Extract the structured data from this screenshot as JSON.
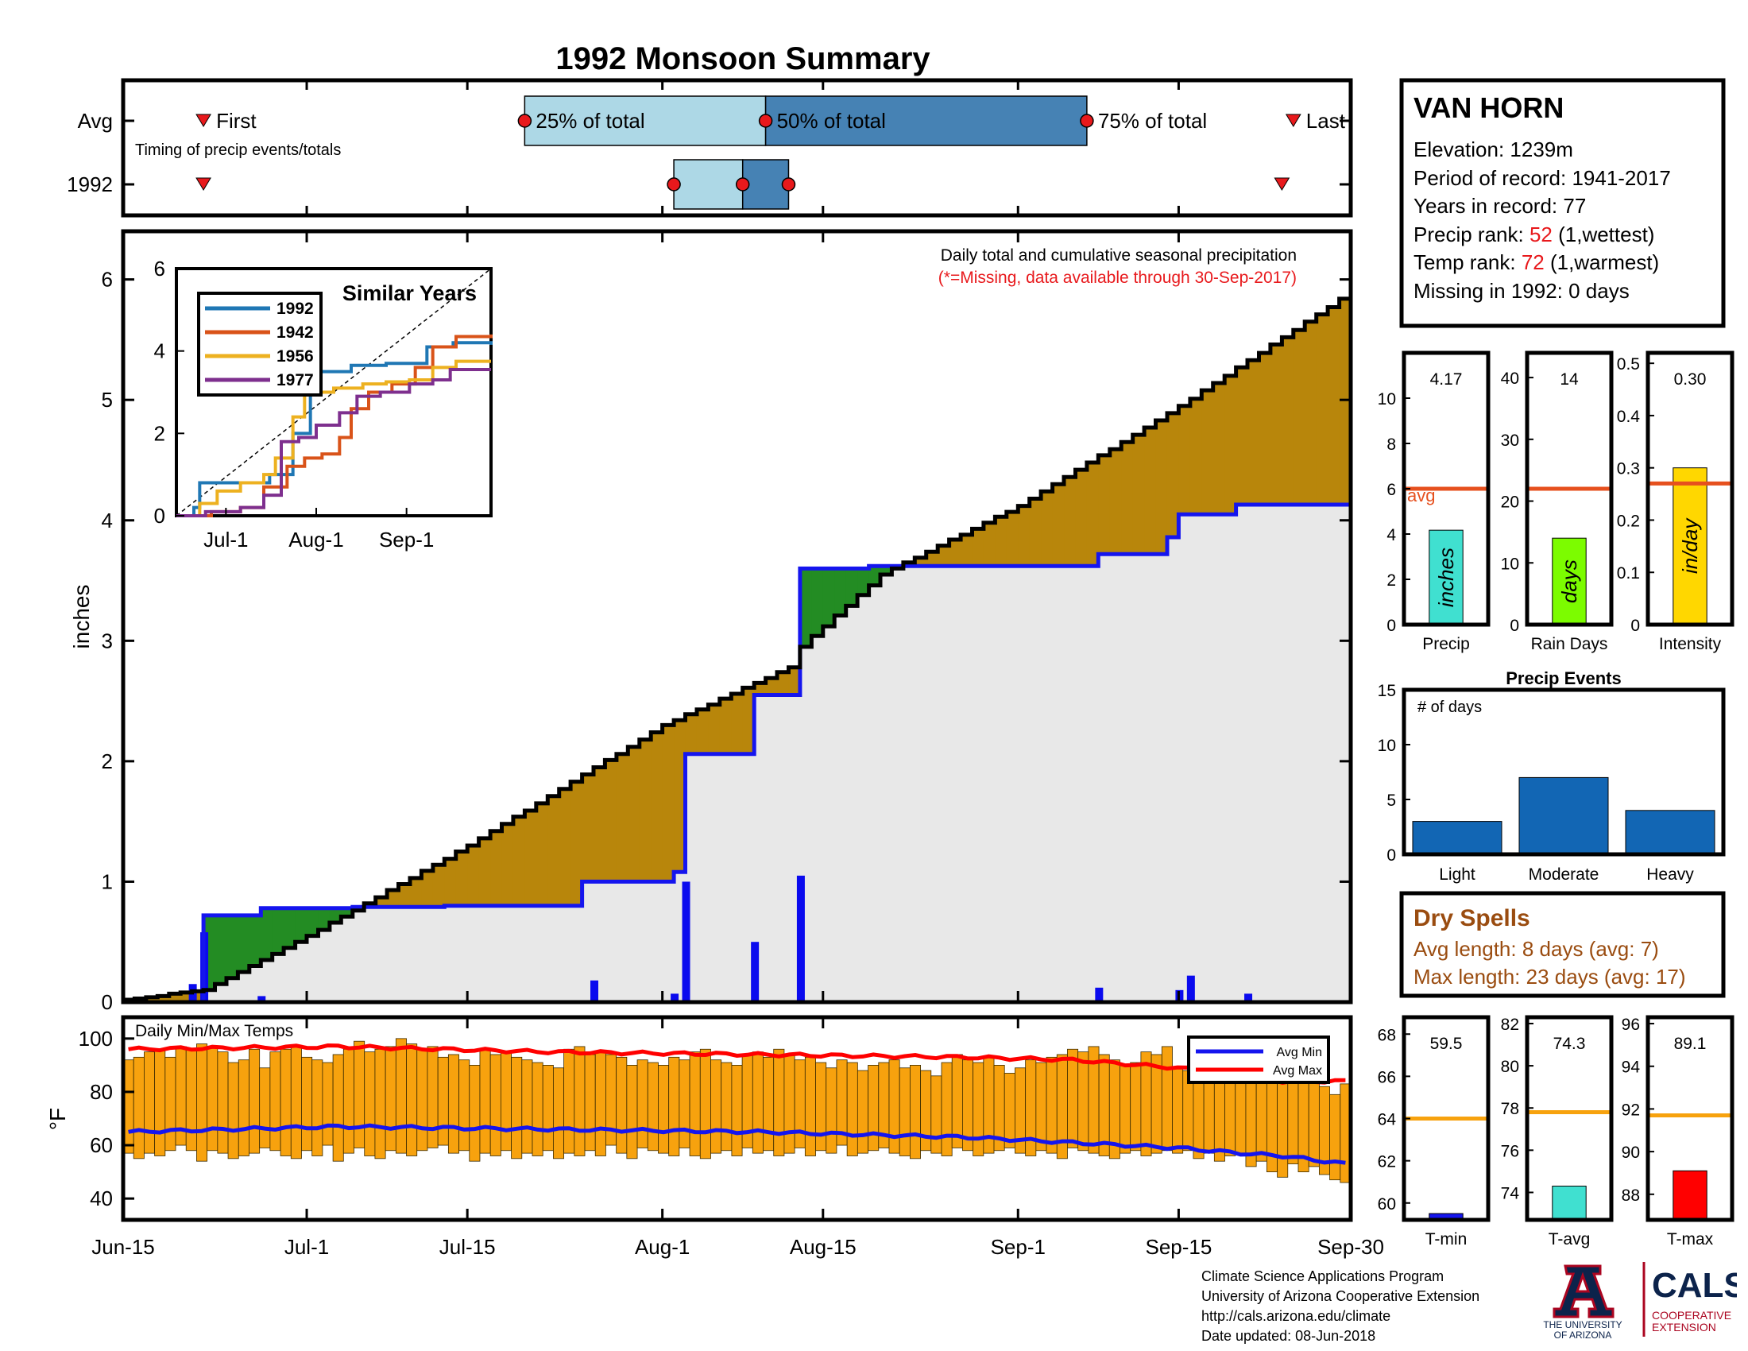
{
  "title": "1992 Monsoon Summary",
  "timing": {
    "row_labels": [
      "Avg",
      "1992"
    ],
    "caption": "Timing of precip events/totals",
    "first_label": "First",
    "last_label": "Last",
    "pct25_label": "25% of total",
    "pct50_label": "50% of total",
    "pct75_label": "75% of total"
  },
  "station": {
    "name": "VAN HORN",
    "elevation_label": "Elevation: ",
    "elevation": "1239m",
    "period_label": "Period of record: ",
    "period": "1941-2017",
    "years_label": "Years in record: ",
    "years": "77",
    "precip_rank_label": "Precip rank: ",
    "precip_rank": "52",
    "precip_rank_note": " (1,wettest)",
    "temp_rank_label": "Temp rank: ",
    "temp_rank": "72",
    "temp_rank_note": " (1,warmest)",
    "missing_label": "Missing in 1992: ",
    "missing": "0 days"
  },
  "main_chart": {
    "subtitle": "Daily total and cumulative seasonal precipitation",
    "missing_note": "(*=Missing, data available through 30-Sep-2017)",
    "ylabel": "inches"
  },
  "inset": {
    "title": "Similar Years"
  },
  "temp_chart": {
    "title": "Daily Min/Max Temps",
    "ylabel": "°F",
    "legend_min": "Avg Min",
    "legend_max": "Avg Max"
  },
  "dry_spells": {
    "title": "Dry Spells",
    "avg_line": "Avg length: 8 days (avg: 7)",
    "max_line": "Max length: 23 days (avg: 17)"
  },
  "footer": {
    "line1": "Climate Science Applications Program",
    "line2": "University of Arizona Cooperative Extension",
    "line3": "http://cals.arizona.edu/climate",
    "line4": " Date updated: 08-Jun-2018"
  },
  "logos": {
    "ua_line1": "THE UNIVERSITY",
    "ua_line2": "OF ARIZONA",
    "cals_name": "CALS",
    "cals_line1": "COOPERATIVE",
    "cals_line2": "EXTENSION"
  },
  "colors": {
    "title_red": "#e8191c",
    "obs_black": "#000000",
    "avg_blue": "#1515ee",
    "above_green": "#238c23",
    "below_brown": "#b8860b",
    "bar_blue": "#0a0aee",
    "temp_orange": "#f7a20e",
    "avg_orange": "#e6501e",
    "events_blue": "#1266b4",
    "dry_brown": "#9a4c10",
    "light_blue": "#add8e6",
    "steel_blue": "#4682b4",
    "precip_teal": "#40e0d0",
    "raindays_green": "#7cfc00",
    "intensity_gold": "#ffd700",
    "tavg_teal": "#40e0d0",
    "tmax_red": "#ff0000",
    "tmin_blue": "#1515ee"
  },
  "chart_data": [
    {
      "id": "timing",
      "type": "timeline",
      "x_dates": [
        "Jun-15",
        "Jul-1",
        "Jul-15",
        "Aug-1",
        "Aug-15",
        "Sep-1",
        "Sep-15",
        "Sep-30"
      ],
      "avg": {
        "first": "Jun-22",
        "pct25": "Jul-20",
        "pct50": "Aug-10",
        "pct75": "Sep-7",
        "last": "Sep-25"
      },
      "year_1992": {
        "first": "Jun-22",
        "pct25": "Aug-2",
        "pct50": "Aug-8",
        "pct75": "Aug-12",
        "last": "Sep-24"
      }
    },
    {
      "id": "cumulative_precip",
      "type": "area",
      "x_label_dates": [
        "Jun-15",
        "Jul-1",
        "Jul-15",
        "Aug-1",
        "Aug-15",
        "Sep-1",
        "Sep-15",
        "Sep-30"
      ],
      "yticks": [
        0,
        1,
        2,
        3,
        4,
        5,
        6
      ],
      "ylim": [
        0,
        6.4
      ],
      "avg_cumulative_steps": [
        {
          "date": "Jun-15",
          "value": 0.0
        },
        {
          "date": "Jun-22",
          "value": 0.72
        },
        {
          "date": "Jun-27",
          "value": 0.78
        },
        {
          "date": "Jul-5",
          "value": 0.79
        },
        {
          "date": "Jul-13",
          "value": 0.8
        },
        {
          "date": "Jul-25",
          "value": 1.0
        },
        {
          "date": "Aug-2",
          "value": 1.08
        },
        {
          "date": "Aug-3",
          "value": 2.06
        },
        {
          "date": "Aug-9",
          "value": 2.55
        },
        {
          "date": "Aug-13",
          "value": 3.6
        },
        {
          "date": "Aug-19",
          "value": 3.62
        },
        {
          "date": "Sep-8",
          "value": 3.72
        },
        {
          "date": "Sep-14",
          "value": 3.86
        },
        {
          "date": "Sep-15",
          "value": 4.05
        },
        {
          "date": "Sep-20",
          "value": 4.13
        },
        {
          "date": "Sep-30",
          "value": 4.13
        }
      ],
      "observed_cumulative_keypoints": [
        {
          "date": "Jun-15",
          "value": 0.02
        },
        {
          "date": "Jun-22",
          "value": 0.1
        },
        {
          "date": "Jul-1",
          "value": 0.55
        },
        {
          "date": "Jul-15",
          "value": 1.3
        },
        {
          "date": "Aug-1",
          "value": 2.3
        },
        {
          "date": "Aug-12",
          "value": 2.78
        },
        {
          "date": "Aug-13",
          "value": 2.95
        },
        {
          "date": "Aug-20",
          "value": 3.55
        },
        {
          "date": "Sep-1",
          "value": 4.12
        },
        {
          "date": "Sep-15",
          "value": 4.95
        },
        {
          "date": "Sep-30",
          "value": 5.9
        }
      ],
      "daily_precip": [
        {
          "date": "Jun-21",
          "value": 0.15
        },
        {
          "date": "Jun-22",
          "value": 0.58
        },
        {
          "date": "Jun-27",
          "value": 0.05
        },
        {
          "date": "Jul-26",
          "value": 0.18
        },
        {
          "date": "Aug-2",
          "value": 0.07
        },
        {
          "date": "Aug-3",
          "value": 1.0
        },
        {
          "date": "Aug-9",
          "value": 0.5
        },
        {
          "date": "Aug-13",
          "value": 1.05
        },
        {
          "date": "Sep-8",
          "value": 0.12
        },
        {
          "date": "Sep-15",
          "value": 0.1
        },
        {
          "date": "Sep-16",
          "value": 0.22
        },
        {
          "date": "Sep-21",
          "value": 0.07
        }
      ]
    },
    {
      "id": "similar_years",
      "type": "line",
      "x_tick_labels": [
        "Jul-1",
        "Aug-1",
        "Sep-1"
      ],
      "yticks": [
        0,
        2,
        4,
        6
      ],
      "ylim": [
        0,
        6
      ],
      "series": [
        {
          "name": "1992",
          "color": "#1f77b4",
          "points": [
            [
              0,
              0
            ],
            [
              6,
              0.2
            ],
            [
              8,
              0.8
            ],
            [
              20,
              0.8
            ],
            [
              25,
              0.8
            ],
            [
              32,
              1.0
            ],
            [
              40,
              2.0
            ],
            [
              46,
              3.5
            ],
            [
              60,
              3.65
            ],
            [
              72,
              3.7
            ],
            [
              86,
              4.1
            ],
            [
              95,
              4.2
            ],
            [
              108,
              4.15
            ]
          ]
        },
        {
          "name": "1942",
          "color": "#d95319",
          "points": [
            [
              0,
              0
            ],
            [
              12,
              0.1
            ],
            [
              22,
              0.2
            ],
            [
              30,
              0.7
            ],
            [
              38,
              1.2
            ],
            [
              44,
              1.4
            ],
            [
              50,
              1.5
            ],
            [
              56,
              1.9
            ],
            [
              60,
              2.6
            ],
            [
              66,
              3.0
            ],
            [
              74,
              3.2
            ],
            [
              82,
              3.6
            ],
            [
              88,
              4.1
            ],
            [
              96,
              4.35
            ],
            [
              108,
              4.4
            ]
          ]
        },
        {
          "name": "1956",
          "color": "#edb120",
          "points": [
            [
              0,
              0
            ],
            [
              8,
              0.3
            ],
            [
              14,
              0.6
            ],
            [
              22,
              0.8
            ],
            [
              30,
              1.0
            ],
            [
              34,
              1.4
            ],
            [
              40,
              2.4
            ],
            [
              44,
              3.0
            ],
            [
              54,
              3.1
            ],
            [
              64,
              3.2
            ],
            [
              72,
              3.25
            ],
            [
              80,
              3.3
            ],
            [
              88,
              3.6
            ],
            [
              96,
              3.75
            ],
            [
              108,
              3.75
            ]
          ]
        },
        {
          "name": "1977",
          "color": "#7e2f8e",
          "points": [
            [
              0,
              0
            ],
            [
              10,
              0.1
            ],
            [
              22,
              0.2
            ],
            [
              30,
              0.5
            ],
            [
              36,
              1.8
            ],
            [
              42,
              1.9
            ],
            [
              48,
              2.2
            ],
            [
              56,
              2.5
            ],
            [
              62,
              2.9
            ],
            [
              70,
              3.0
            ],
            [
              80,
              3.2
            ],
            [
              88,
              3.3
            ],
            [
              94,
              3.55
            ],
            [
              108,
              3.55
            ]
          ]
        }
      ],
      "reference_line": {
        "from": [
          0,
          0
        ],
        "to": [
          108,
          6.0
        ],
        "style": "dashed"
      }
    },
    {
      "id": "seasonal_bars",
      "type": "bar",
      "panels": [
        {
          "label": "Precip",
          "unit": "inches",
          "value": 4.17,
          "value_text": "4.17",
          "avg": 6.0,
          "avg_label": "avg",
          "ylim": [
            0,
            12
          ],
          "yticks": [
            0,
            2,
            4,
            6,
            8,
            10
          ],
          "color": "#40e0d0"
        },
        {
          "label": "Rain Days",
          "unit": "days",
          "value": 14,
          "value_text": "14",
          "avg": 22,
          "ylim": [
            0,
            44
          ],
          "yticks": [
            0,
            10,
            20,
            30,
            40
          ],
          "color": "#7cfc00"
        },
        {
          "label": "Intensity",
          "unit": "in/day",
          "value": 0.3,
          "value_text": "0.30",
          "avg": 0.27,
          "ylim": [
            0,
            0.52
          ],
          "yticks": [
            0,
            0.1,
            0.2,
            0.3,
            0.4,
            0.5
          ],
          "color": "#ffd700"
        }
      ]
    },
    {
      "id": "precip_events",
      "type": "bar",
      "title": "Precip Events",
      "ylabel": "# of days",
      "categories": [
        "Light",
        "Moderate",
        "Heavy"
      ],
      "values": [
        3,
        7,
        4
      ],
      "ylim": [
        0,
        15
      ],
      "yticks": [
        0,
        5,
        10,
        15
      ]
    },
    {
      "id": "daily_temps",
      "type": "bar",
      "yticks": [
        40,
        60,
        80,
        100
      ],
      "ylim": [
        32,
        108
      ],
      "avg_max_keypoints": [
        [
          0,
          96
        ],
        [
          20,
          97
        ],
        [
          40,
          95
        ],
        [
          60,
          94
        ],
        [
          80,
          93
        ],
        [
          90,
          92
        ],
        [
          100,
          89
        ],
        [
          107,
          86
        ],
        [
          110,
          84
        ],
        [
          116,
          84
        ]
      ],
      "avg_min_keypoints": [
        [
          0,
          65
        ],
        [
          20,
          67
        ],
        [
          40,
          66
        ],
        [
          60,
          65
        ],
        [
          80,
          63
        ],
        [
          90,
          61
        ],
        [
          100,
          59
        ],
        [
          106,
          57
        ],
        [
          110,
          56
        ],
        [
          116,
          53
        ]
      ],
      "daily_max": [
        92,
        93,
        95,
        96,
        93,
        97,
        96,
        98,
        97,
        95,
        91,
        92,
        96,
        89,
        95,
        96,
        97,
        93,
        92,
        91,
        94,
        96,
        99,
        95,
        96,
        97,
        100,
        98,
        96,
        97,
        93,
        94,
        92,
        90,
        96,
        94,
        95,
        93,
        92,
        91,
        90,
        89,
        96,
        97,
        94,
        95,
        94,
        93,
        90,
        92,
        91,
        90,
        93,
        92,
        95,
        96,
        92,
        91,
        90,
        94,
        95,
        93,
        96,
        94,
        92,
        93,
        91,
        89,
        92,
        91,
        88,
        90,
        91,
        92,
        89,
        90,
        88,
        86,
        91,
        94,
        92,
        91,
        93,
        90,
        87,
        89,
        92,
        91,
        93,
        94,
        96,
        95,
        97,
        94,
        92,
        90,
        91,
        95,
        94,
        97,
        89,
        88,
        90,
        87,
        93,
        96,
        92,
        91,
        89,
        85,
        90,
        87,
        84,
        85,
        82,
        79,
        83
      ],
      "daily_min": [
        57,
        55,
        57,
        56,
        58,
        60,
        58,
        54,
        58,
        57,
        55,
        56,
        57,
        59,
        58,
        56,
        55,
        58,
        56,
        60,
        54,
        57,
        59,
        56,
        55,
        58,
        57,
        56,
        58,
        59,
        60,
        57,
        58,
        54,
        57,
        56,
        58,
        55,
        57,
        56,
        58,
        55,
        57,
        56,
        58,
        56,
        60,
        57,
        55,
        59,
        58,
        57,
        56,
        59,
        56,
        55,
        57,
        58,
        56,
        59,
        57,
        58,
        56,
        57,
        59,
        56,
        58,
        57,
        60,
        56,
        57,
        58,
        59,
        57,
        56,
        55,
        58,
        57,
        56,
        59,
        58,
        56,
        57,
        58,
        59,
        57,
        56,
        58,
        57,
        55,
        59,
        58,
        57,
        56,
        55,
        57,
        58,
        56,
        57,
        58,
        57,
        58,
        55,
        57,
        54,
        56,
        57,
        52,
        54,
        50,
        48,
        53,
        50,
        52,
        49,
        47,
        46
      ],
      "x_label_dates": [
        "Jun-15",
        "Jul-1",
        "Jul-15",
        "Aug-1",
        "Aug-15",
        "Sep-1",
        "Sep-15",
        "Sep-30"
      ]
    },
    {
      "id": "seasonal_temps",
      "type": "bar",
      "panels": [
        {
          "label": "T-min",
          "value": 59.5,
          "value_text": "59.5",
          "avg": 64.0,
          "ylim": [
            59.2,
            68.8
          ],
          "yticks": [
            60,
            62,
            64,
            66,
            68
          ],
          "color": "#1515ee"
        },
        {
          "label": "T-avg",
          "value": 74.3,
          "value_text": "74.3",
          "avg": 77.8,
          "ylim": [
            72.7,
            82.3
          ],
          "yticks": [
            74,
            76,
            78,
            80,
            82
          ],
          "color": "#40e0d0"
        },
        {
          "label": "T-max",
          "value": 89.1,
          "value_text": "89.1",
          "avg": 91.7,
          "ylim": [
            86.8,
            96.3
          ],
          "yticks": [
            88,
            90,
            92,
            94,
            96
          ],
          "color": "#ff0000"
        }
      ]
    }
  ]
}
